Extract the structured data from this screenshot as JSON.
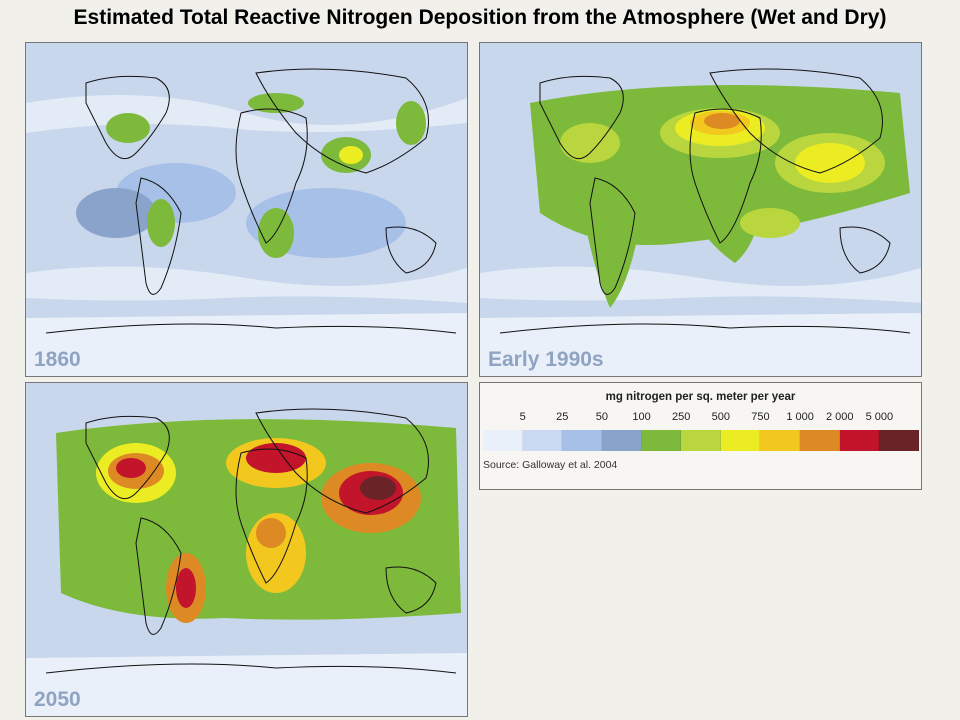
{
  "title": "Estimated Total Reactive Nitrogen Deposition from the Atmosphere (Wet and Dry)",
  "panels": [
    {
      "label": "1860"
    },
    {
      "label": "Early 1990s"
    },
    {
      "label": "2050"
    }
  ],
  "legend": {
    "title": "mg nitrogen per sq. meter per year",
    "ticks": [
      "5",
      "25",
      "50",
      "100",
      "250",
      "500",
      "750",
      "1 000",
      "2 000",
      "5 000"
    ],
    "colors": [
      "#eaf0fa",
      "#c9daf2",
      "#a7c0e7",
      "#8aa3cb",
      "#7dba3b",
      "#b9d63e",
      "#ecec22",
      "#f2c81e",
      "#dd8a24",
      "#c2142a",
      "#6a2428"
    ],
    "source": "Source: Galloway et al. 2004"
  },
  "colors": {
    "background": "#f1f0ea",
    "ocean_low": "#c9d7ec",
    "label": "#8fa3c2"
  }
}
